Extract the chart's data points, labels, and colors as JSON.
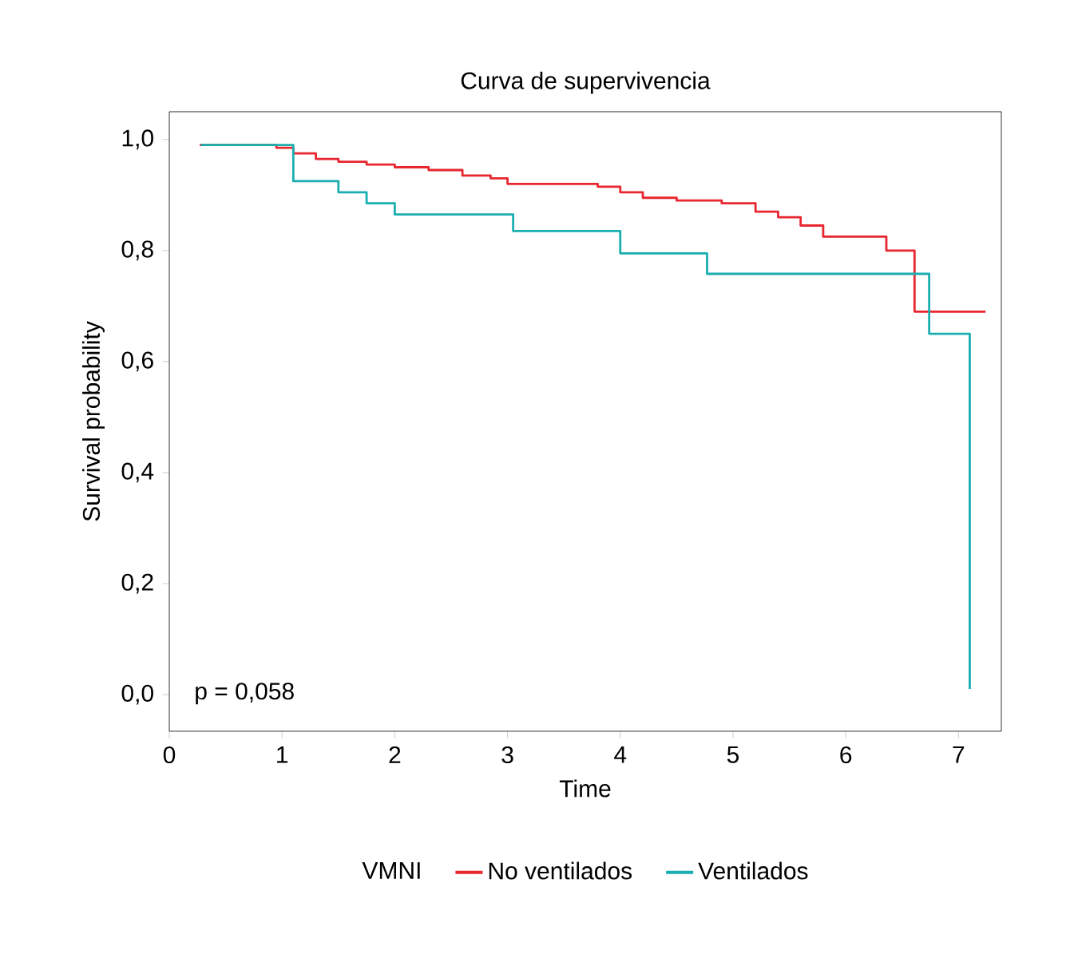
{
  "chart_data": {
    "type": "step",
    "title": "Curva de supervivencia",
    "xlabel": "Time",
    "ylabel": "Survival probability",
    "legend_title": "VMNI",
    "xlim": [
      0,
      7.38
    ],
    "ylim": [
      -0.066,
      1.05
    ],
    "xticks": [
      0,
      1,
      2,
      3,
      4,
      5,
      6,
      7
    ],
    "yticks": [
      {
        "value": 0,
        "label": "0,0"
      },
      {
        "value": 0.2,
        "label": "0,2"
      },
      {
        "value": 0.4,
        "label": "0,4"
      },
      {
        "value": 0.6,
        "label": "0,6"
      },
      {
        "value": 0.8,
        "label": "0,8"
      },
      {
        "value": 1,
        "label": "1,0"
      }
    ],
    "series": [
      {
        "name": "No ventilados",
        "color": "#e8262f",
        "x": [
          0.27,
          0.95,
          1.1,
          1.3,
          1.5,
          1.75,
          2.0,
          2.3,
          2.6,
          2.85,
          3.0,
          3.8,
          4.0,
          4.2,
          4.5,
          4.9,
          5.2,
          5.4,
          5.6,
          5.8,
          6.36,
          6.61,
          7.24
        ],
        "values": [
          0.99,
          0.985,
          0.975,
          0.965,
          0.96,
          0.955,
          0.95,
          0.945,
          0.935,
          0.93,
          0.92,
          0.915,
          0.905,
          0.895,
          0.89,
          0.885,
          0.87,
          0.86,
          0.845,
          0.825,
          0.8,
          0.69,
          0.69
        ]
      },
      {
        "name": "Ventilados",
        "color": "#1aaeb0",
        "x": [
          0.28,
          1.1,
          1.5,
          1.75,
          2.0,
          3.05,
          4.0,
          4.77,
          6.74,
          7.1
        ],
        "values": [
          0.99,
          0.925,
          0.905,
          0.885,
          0.865,
          0.835,
          0.795,
          0.758,
          0.65,
          0.01
        ]
      }
    ],
    "legend": "bottom",
    "line_style": "solid",
    "marker": "none",
    "annotations": [
      "p = 0,058"
    ]
  }
}
